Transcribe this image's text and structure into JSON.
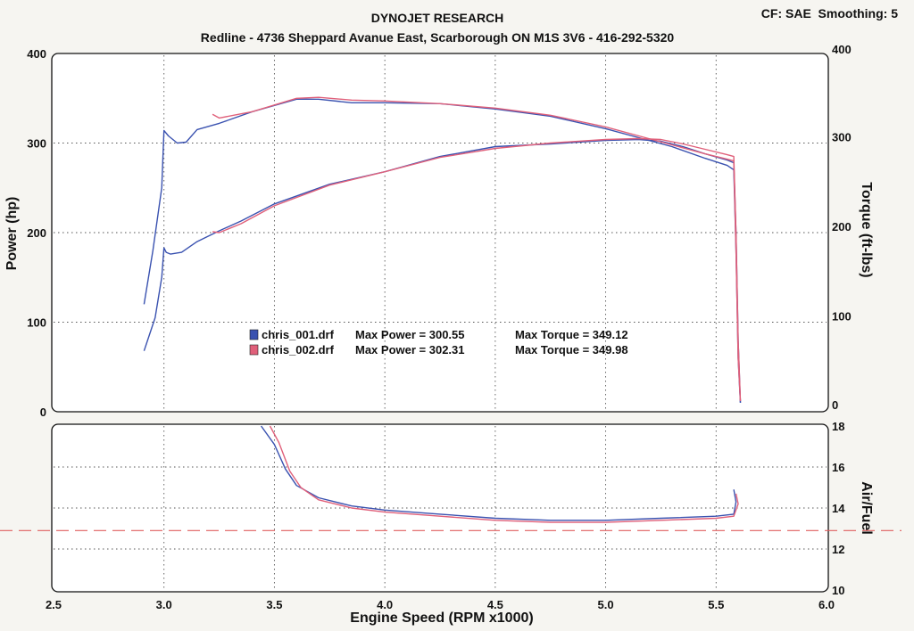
{
  "header": {
    "title": "DYNOJET RESEARCH",
    "subtitle": "Redline - 4736 Sheppard Avanue East, Scarborough ON M1S 3V6 - 416-292-5320",
    "settings": "CF: SAE  Smoothing: 5"
  },
  "colors": {
    "run1": "#3a52b0",
    "run2": "#e0607a",
    "target": "#e06060"
  },
  "chart_data": [
    {
      "type": "line",
      "id": "power-torque",
      "x_ticks": [
        "2.5",
        "3.0",
        "3.5",
        "4.0",
        "4.5",
        "5.0",
        "5.5",
        "6.0"
      ],
      "y_left_ticks": [
        "0",
        "100",
        "200",
        "300",
        "400"
      ],
      "y_right_ticks": [
        "0",
        "100",
        "200",
        "300",
        "400"
      ],
      "xlim": [
        2.5,
        6.0
      ],
      "ylim_left": [
        0,
        400
      ],
      "ylim_right": [
        0,
        400
      ],
      "xlabel": "Engine Speed (RPM x1000)",
      "ylabel_left": "Power (hp)",
      "ylabel_right": "Torque (ft-lbs)",
      "grid": true,
      "legend": [
        {
          "file": "chris_001.drf",
          "power_text": "Max Power = 300.55",
          "torque_text": "Max Torque = 349.12",
          "color": "#3a52b0"
        },
        {
          "file": "chris_002.drf",
          "power_text": "Max Power = 302.31",
          "torque_text": "Max Torque = 349.98",
          "color": "#e0607a"
        }
      ],
      "series": [
        {
          "name": "chris_001.drf",
          "color": "#3a52b0",
          "power": {
            "x": [
              2.91,
              2.96,
              2.99,
              3.0,
              3.01,
              3.03,
              3.08,
              3.15,
              3.25,
              3.35,
              3.5,
              3.75,
              4.0,
              4.25,
              4.5,
              4.75,
              5.0,
              5.15,
              5.25,
              5.35,
              5.45,
              5.55,
              5.58,
              5.59,
              5.6,
              5.61
            ],
            "y": [
              68,
              105,
              150,
              183,
              178,
              176,
              178,
              190,
              202,
              213,
              232,
              254,
              268,
              285,
              296,
              299,
              303,
              304,
              302,
              296,
              288,
              281,
              278,
              200,
              80,
              10
            ]
          },
          "torque": {
            "x": [
              2.91,
              2.95,
              2.99,
              3.0,
              3.02,
              3.06,
              3.1,
              3.15,
              3.25,
              3.4,
              3.6,
              3.7,
              3.85,
              4.0,
              4.25,
              4.5,
              4.75,
              5.0,
              5.15,
              5.3,
              5.45,
              5.55,
              5.58,
              5.59,
              5.6,
              5.61
            ],
            "y": [
              120,
              180,
              250,
              314,
              308,
              300,
              301,
              315,
              322,
              335,
              349,
              349,
              345,
              345,
              344,
              338,
              330,
              316,
              306,
              296,
              283,
              275,
              270,
              180,
              60,
              10
            ]
          },
          "air_fuel": {
            "x": [
              3.44,
              3.5,
              3.55,
              3.6,
              3.7,
              3.85,
              4.0,
              4.25,
              4.5,
              4.75,
              5.0,
              5.25,
              5.5,
              5.58,
              5.59,
              5.58
            ],
            "y": [
              18.0,
              17.1,
              15.9,
              15.1,
              14.5,
              14.1,
              13.9,
              13.7,
              13.5,
              13.4,
              13.4,
              13.5,
              13.6,
              13.7,
              14.3,
              14.9
            ]
          }
        },
        {
          "name": "chris_002.drf",
          "color": "#e0607a",
          "power": {
            "x": [
              3.22,
              3.25,
              3.35,
              3.5,
              3.75,
              4.0,
              4.25,
              4.5,
              4.75,
              5.0,
              5.15,
              5.25,
              5.35,
              5.45,
              5.55,
              5.58,
              5.59,
              5.6,
              5.61
            ],
            "y": [
              201,
              200,
              210,
              230,
              253,
              268,
              284,
              294,
              300,
              304,
              305,
              304,
              299,
              293,
              287,
              285,
              200,
              80,
              12
            ]
          },
          "torque": {
            "x": [
              3.22,
              3.25,
              3.4,
              3.6,
              3.7,
              3.85,
              4.0,
              4.25,
              4.5,
              4.75,
              5.0,
              5.15,
              5.3,
              5.45,
              5.55,
              5.58,
              5.59,
              5.6,
              5.61
            ],
            "y": [
              332,
              328,
              335,
              350,
              351,
              348,
              347,
              344,
              339,
              331,
              318,
              308,
              298,
              288,
              282,
              280,
              180,
              60,
              12
            ]
          },
          "air_fuel": {
            "x": [
              3.48,
              3.52,
              3.57,
              3.62,
              3.7,
              3.85,
              4.0,
              4.25,
              4.5,
              4.75,
              5.0,
              5.25,
              5.5,
              5.58,
              5.6,
              5.59
            ],
            "y": [
              18.0,
              17.2,
              15.8,
              15.0,
              14.4,
              14.0,
              13.8,
              13.6,
              13.4,
              13.3,
              13.3,
              13.4,
              13.5,
              13.6,
              14.2,
              14.7
            ]
          }
        }
      ]
    },
    {
      "type": "line",
      "id": "air-fuel",
      "y_ticks": [
        "10",
        "12",
        "14",
        "16",
        "18"
      ],
      "ylim": [
        10,
        18
      ],
      "ylabel": "Air/Fuel",
      "target_afr": 12.9,
      "grid": true
    }
  ]
}
